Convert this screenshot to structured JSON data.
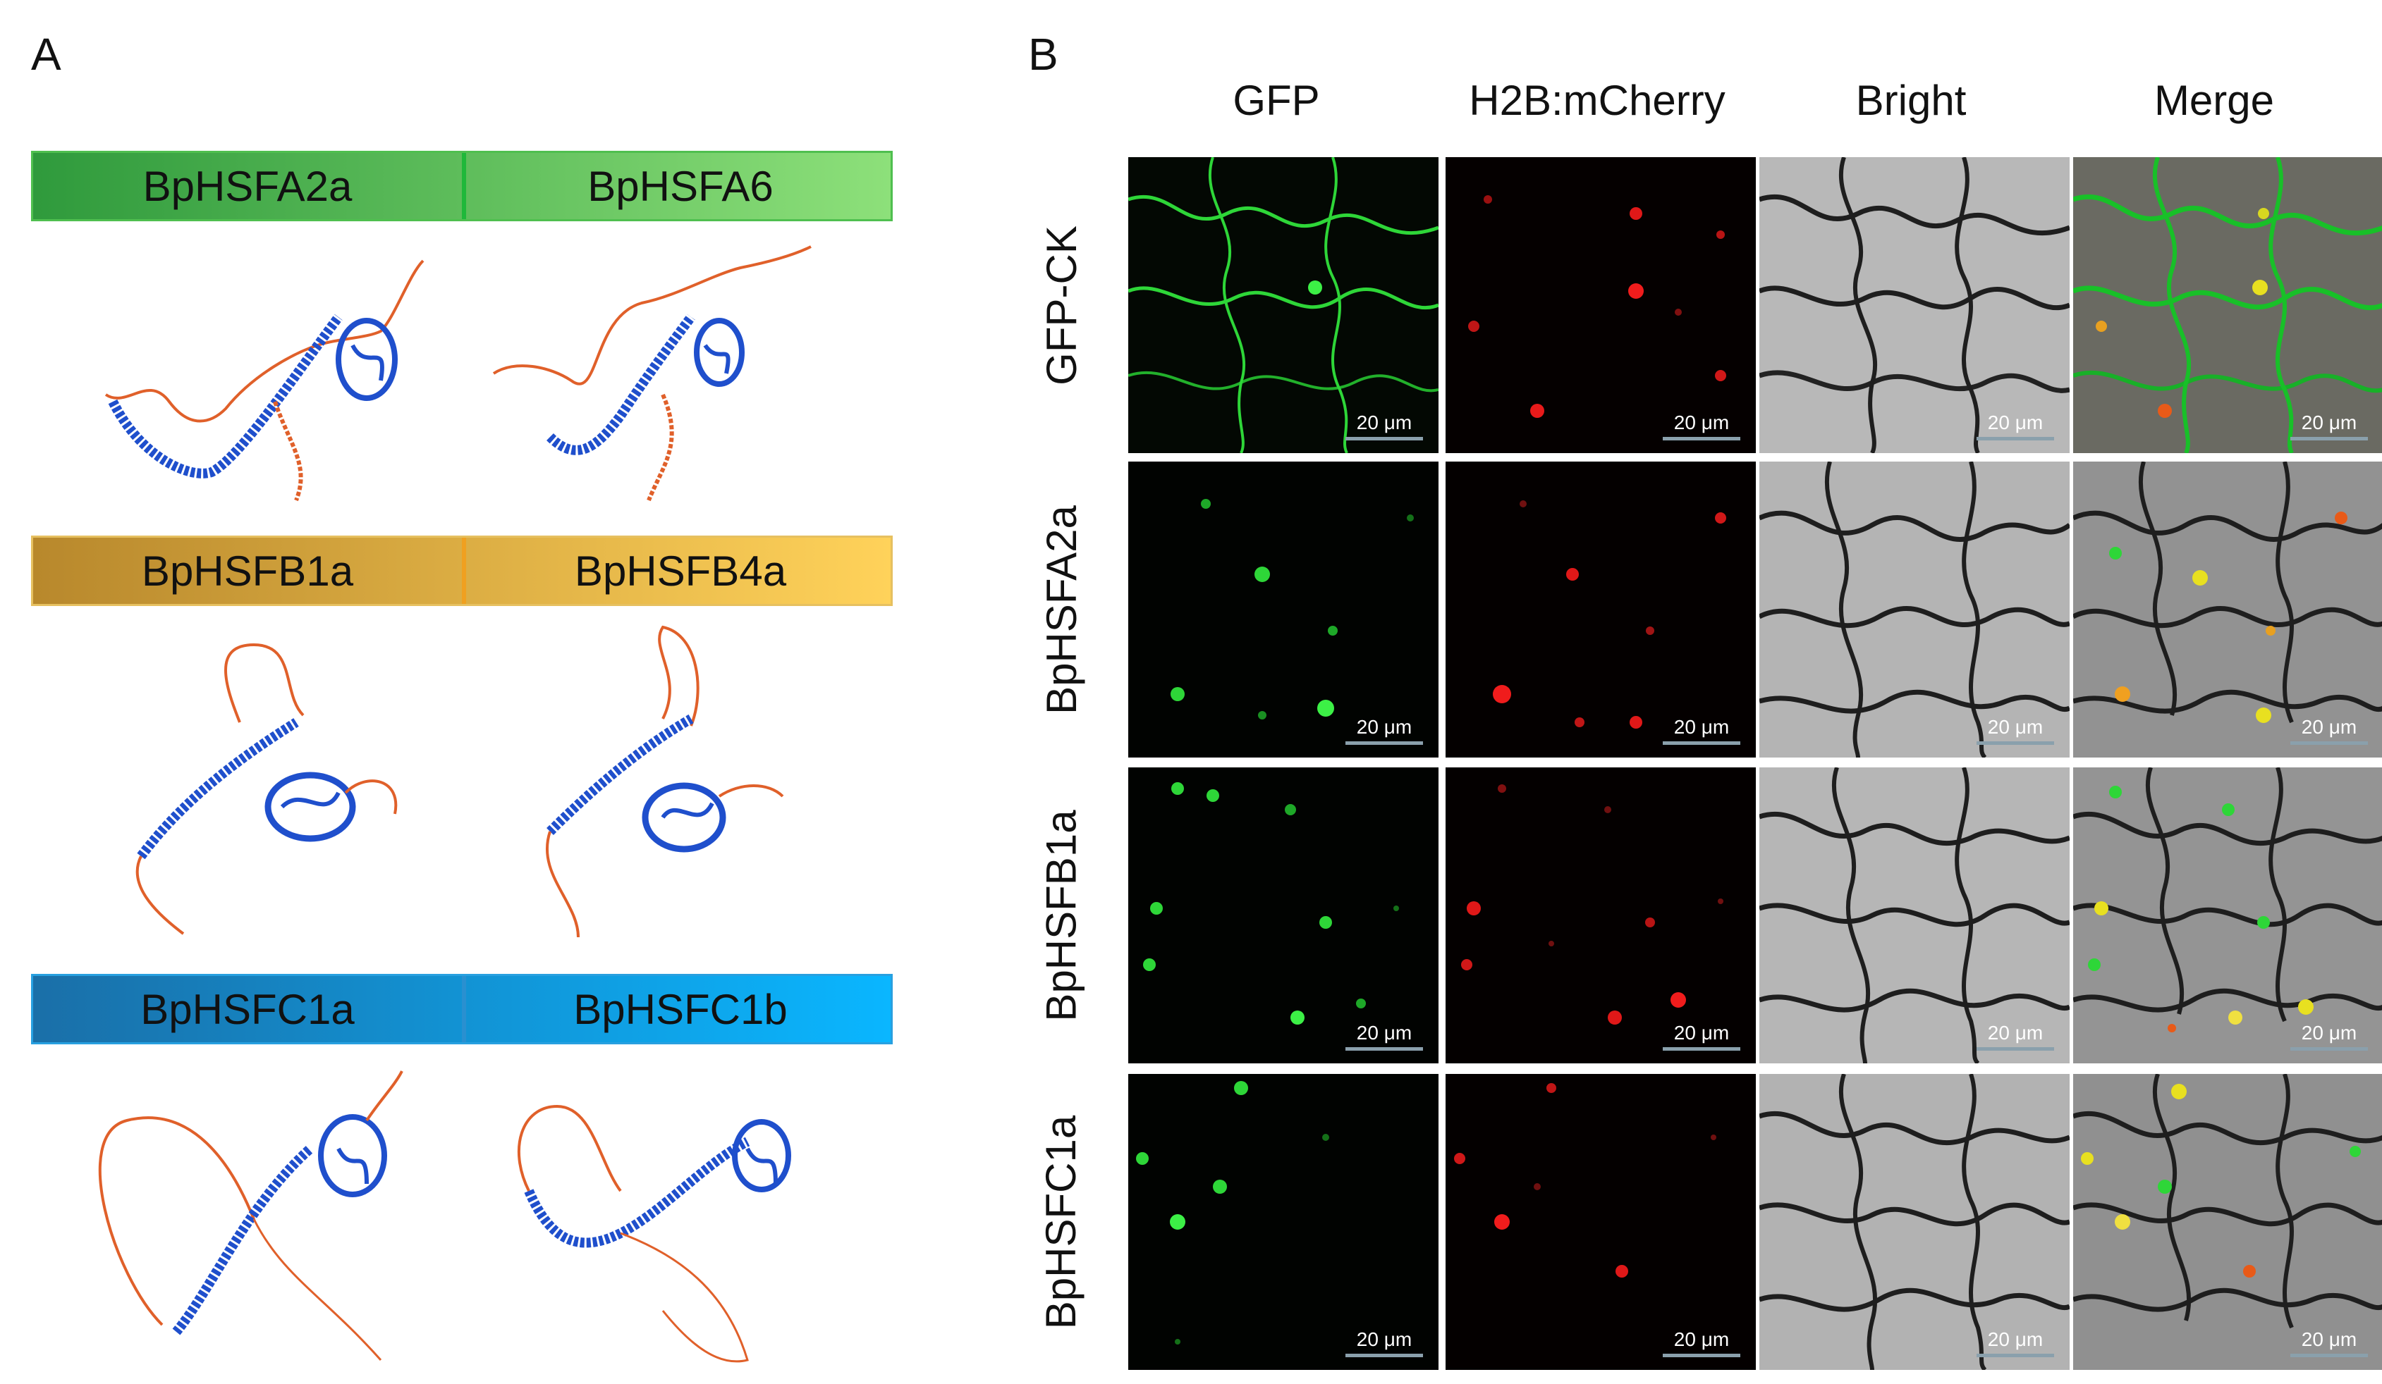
{
  "panels": {
    "a": "A",
    "b": "B"
  },
  "colors": {
    "green_bar": "#3aa53a",
    "yellow_bar": "#d4a02a",
    "blue_bar": "#1b86c8",
    "helix_blue": "#1f4fcc",
    "coil_orange": "#e0602a",
    "gfp": "#33e03a",
    "mcherry": "#e81818",
    "scale_bar": "#8aa0ac"
  },
  "structures": {
    "rows": [
      {
        "left": "BpHSFA2a",
        "right": "BpHSFA6"
      },
      {
        "left": "BpHSFB1a",
        "right": "BpHSFB4a"
      },
      {
        "left": "BpHSFC1a",
        "right": "BpHSFC1b"
      }
    ]
  },
  "microscopy": {
    "columns": [
      "GFP",
      "H2B:mCherry",
      "Bright",
      "Merge"
    ],
    "rows": [
      "GFP-CK",
      "BpHSFA2a",
      "BpHSFB1a",
      "BpHSFC1a"
    ],
    "scale_label": "20 μm"
  }
}
